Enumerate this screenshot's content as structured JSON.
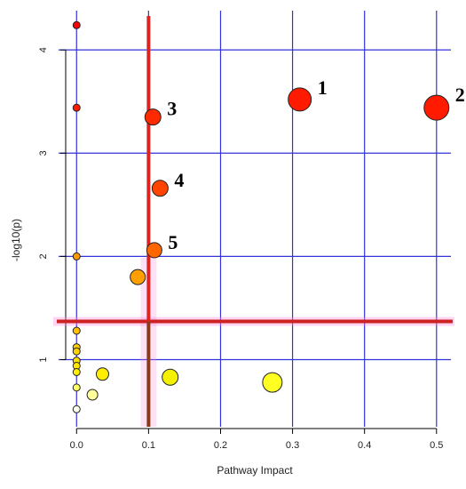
{
  "chart_data": {
    "type": "scatter",
    "title": "",
    "xlabel": "Pathway Impact",
    "ylabel": "-log10(p)",
    "xlim": [
      -0.025,
      0.52
    ],
    "ylim": [
      0.35,
      4.38
    ],
    "x_ticks": [
      0.0,
      0.1,
      0.2,
      0.3,
      0.4,
      0.5
    ],
    "x_tick_labels": [
      "0.0",
      "0.1",
      "0.2",
      "0.3",
      "0.4",
      "0.5"
    ],
    "y_ticks": [
      1,
      2,
      3,
      4
    ],
    "y_tick_labels": [
      "1",
      "2",
      "3",
      "4"
    ],
    "grid": true,
    "grid_color": "#3333dd",
    "threshold_lines": {
      "x": 0.1,
      "y": 1.37,
      "vertical_color": "#dd2222",
      "horizontal_color": "#cc2222",
      "lower_segment_color": "#8a3a1a",
      "glow_color": "#ff88dd"
    },
    "points": [
      {
        "x": 0.31,
        "y": 3.52,
        "size": 13,
        "color": "#ff1a00",
        "label": "1"
      },
      {
        "x": 0.5,
        "y": 3.44,
        "size": 14,
        "color": "#ff1a00",
        "label": "2"
      },
      {
        "x": 0.106,
        "y": 3.35,
        "size": 9,
        "color": "#ff2a00",
        "label": "3"
      },
      {
        "x": 0.116,
        "y": 2.66,
        "size": 9,
        "color": "#ff4400",
        "label": "4"
      },
      {
        "x": 0.108,
        "y": 2.06,
        "size": 8.5,
        "color": "#ff6600",
        "label": "5"
      },
      {
        "x": 0.0,
        "y": 4.24,
        "size": 4,
        "color": "#ff0000",
        "label": ""
      },
      {
        "x": 0.0,
        "y": 3.44,
        "size": 4,
        "color": "#ff1a00",
        "label": ""
      },
      {
        "x": 0.0,
        "y": 2.0,
        "size": 4,
        "color": "#ff9900",
        "label": ""
      },
      {
        "x": 0.085,
        "y": 1.8,
        "size": 8.5,
        "color": "#ffa000",
        "label": ""
      },
      {
        "x": 0.0,
        "y": 1.28,
        "size": 4,
        "color": "#ffc000",
        "label": ""
      },
      {
        "x": 0.0,
        "y": 1.12,
        "size": 4,
        "color": "#ffd000",
        "label": ""
      },
      {
        "x": 0.0,
        "y": 1.08,
        "size": 4,
        "color": "#ffd000",
        "label": ""
      },
      {
        "x": 0.0,
        "y": 0.99,
        "size": 4,
        "color": "#ffe000",
        "label": ""
      },
      {
        "x": 0.0,
        "y": 0.94,
        "size": 4,
        "color": "#ffe800",
        "label": ""
      },
      {
        "x": 0.0,
        "y": 0.88,
        "size": 4,
        "color": "#ffee00",
        "label": ""
      },
      {
        "x": 0.036,
        "y": 0.86,
        "size": 7,
        "color": "#ffee00",
        "label": ""
      },
      {
        "x": 0.13,
        "y": 0.83,
        "size": 9,
        "color": "#f5f000",
        "label": ""
      },
      {
        "x": 0.272,
        "y": 0.78,
        "size": 11,
        "color": "#ffff22",
        "label": ""
      },
      {
        "x": 0.0,
        "y": 0.73,
        "size": 4,
        "color": "#ffff66",
        "label": ""
      },
      {
        "x": 0.022,
        "y": 0.66,
        "size": 6,
        "color": "#ffff99",
        "label": ""
      },
      {
        "x": 0.0,
        "y": 0.52,
        "size": 4,
        "color": "#ffffee",
        "label": ""
      }
    ]
  }
}
